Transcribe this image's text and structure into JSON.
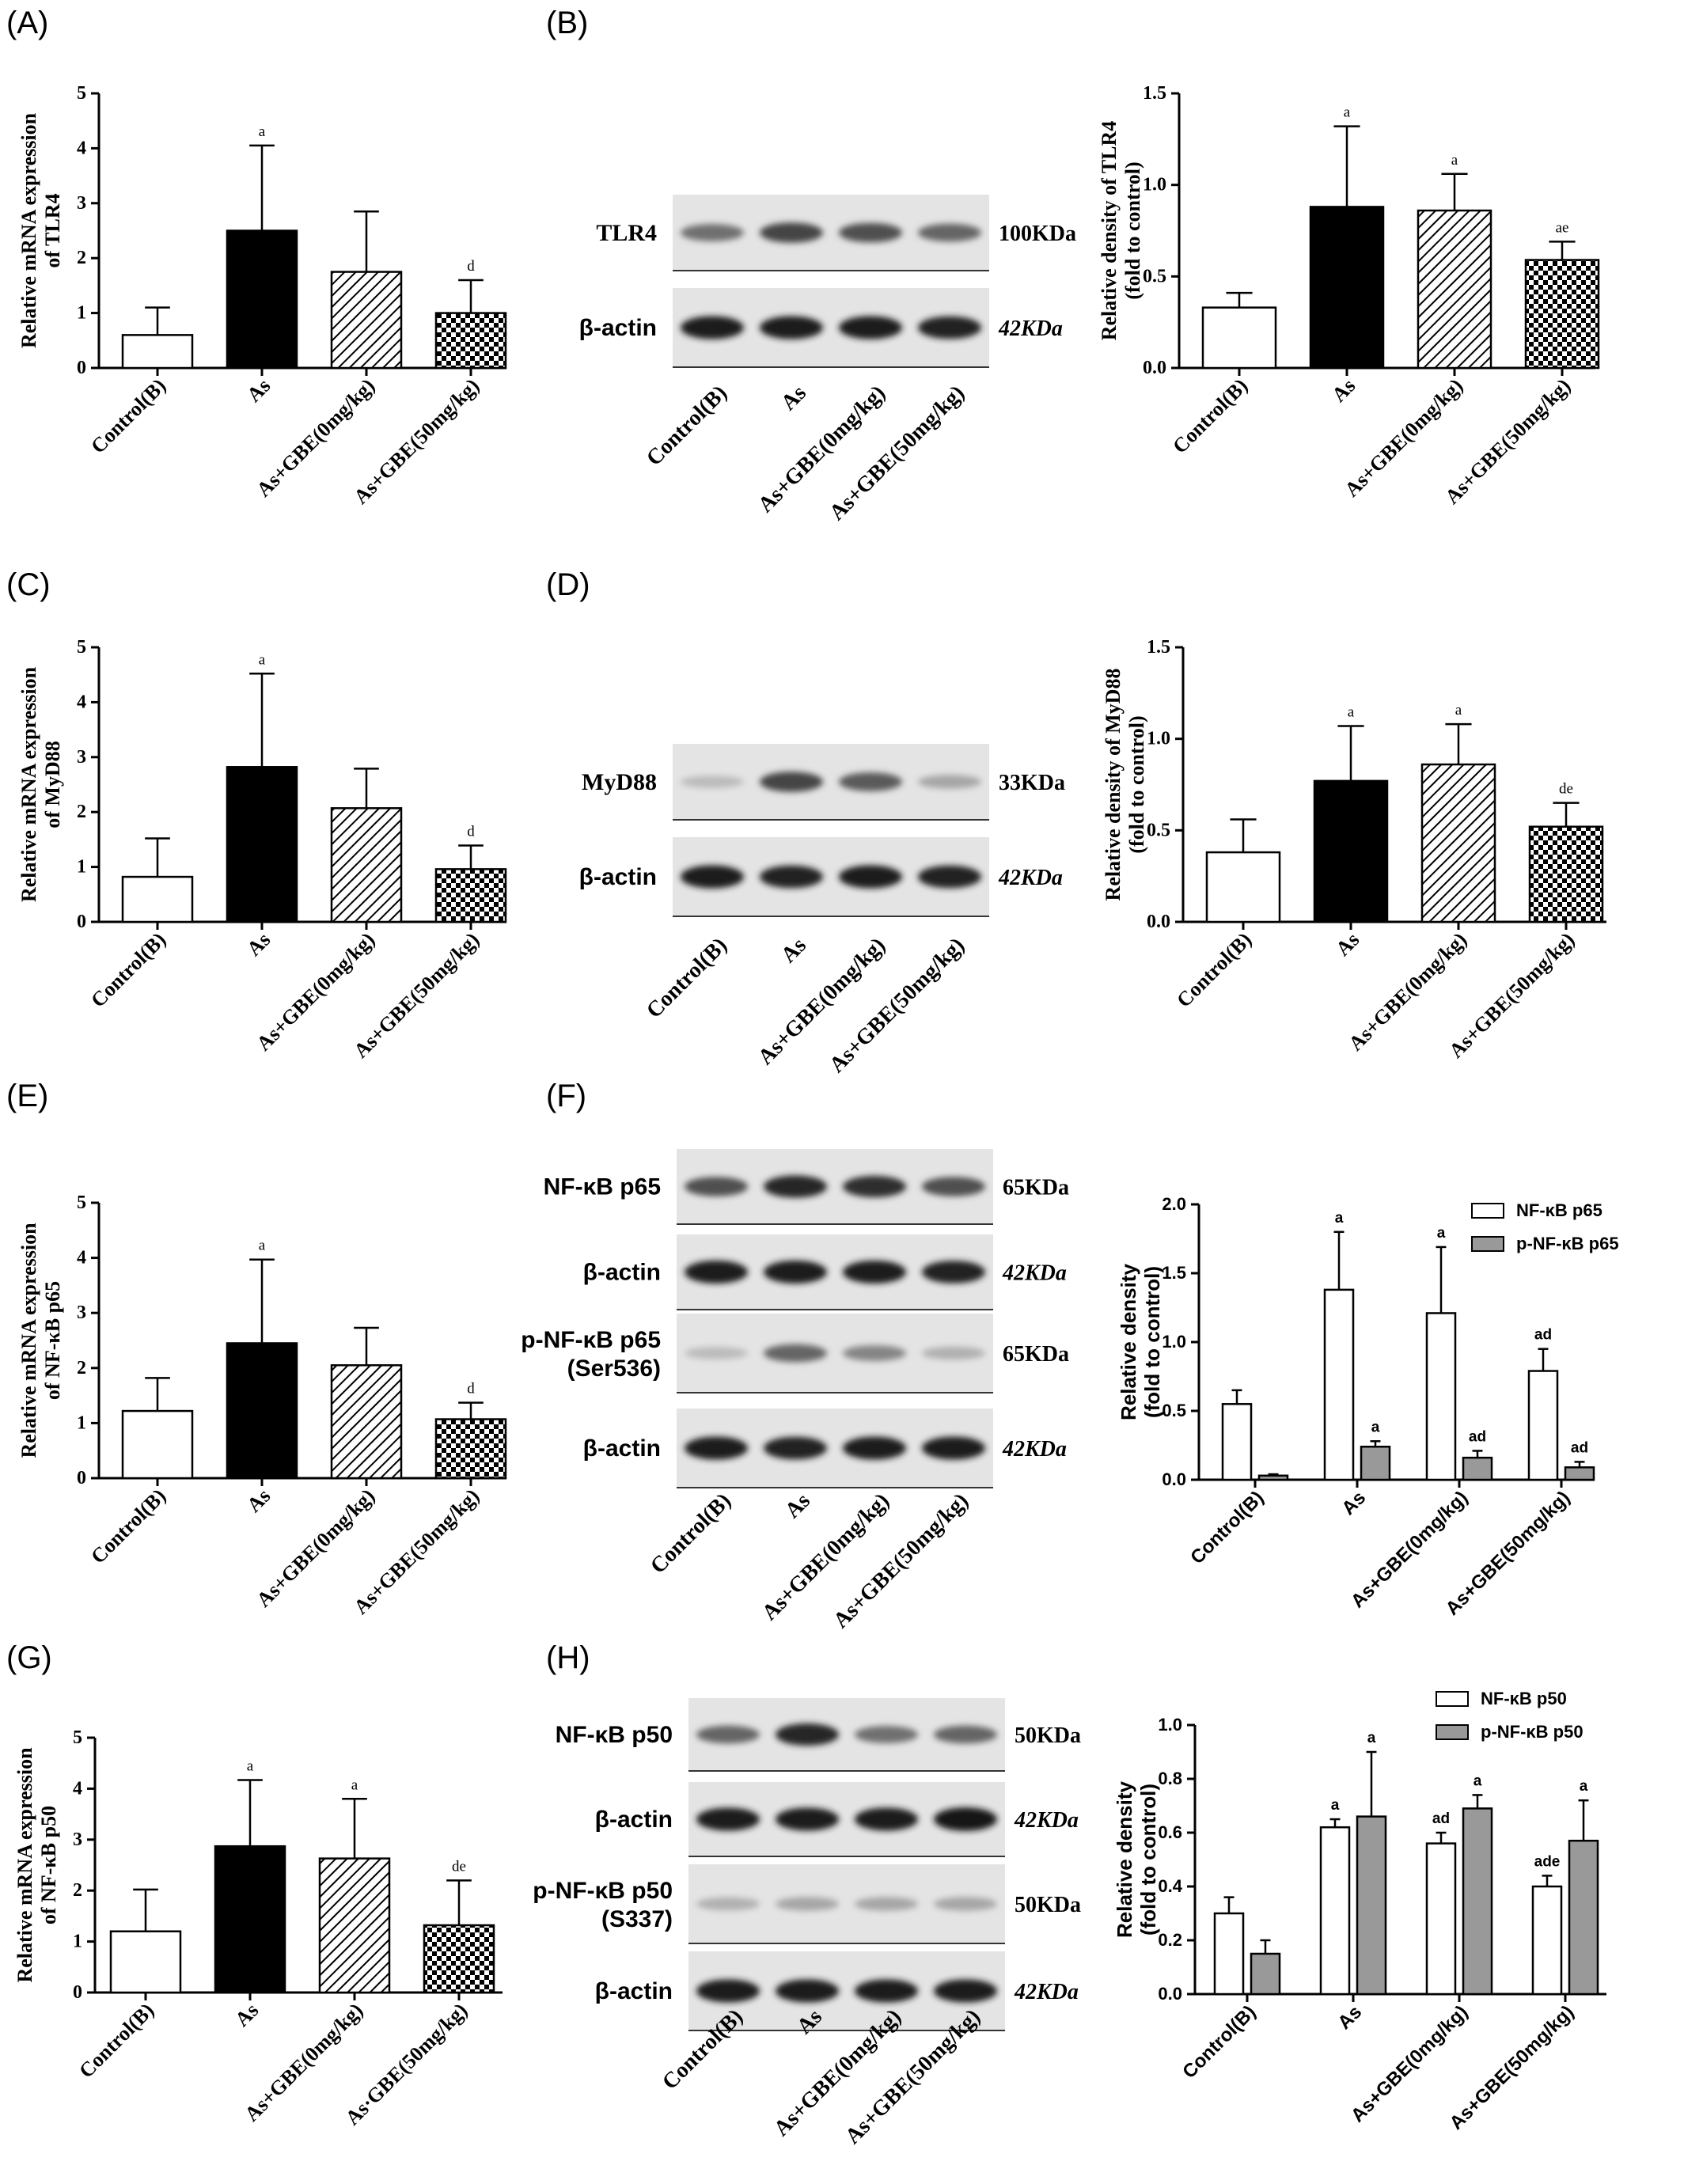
{
  "panel_labels": [
    "(A)",
    "(B)",
    "(C)",
    "(D)",
    "(E)",
    "(F)",
    "(G)",
    "(H)"
  ],
  "colors": {
    "black": "#000000",
    "white": "#ffffff",
    "gray": "#999999",
    "blot_bg": "#e4e4e4",
    "band": "#1e1e1e"
  },
  "chart_data": [
    {
      "id": "A",
      "type": "bar",
      "categories": [
        "Control(B)",
        "As",
        "As+GBE(0mg/kg)",
        "As+GBE(50mg/kg)"
      ],
      "values": [
        0.6,
        2.5,
        1.75,
        1.0
      ],
      "errors": [
        0.5,
        1.55,
        1.1,
        0.6
      ],
      "annotations": [
        "",
        "a",
        "",
        "d"
      ],
      "fills": [
        "white",
        "black",
        "hatch",
        "checker"
      ],
      "ylabel": [
        "Relative mRNA expression",
        "of TLR4"
      ],
      "ylim": [
        0,
        5
      ],
      "yticks": [
        "0",
        "1",
        "2",
        "3",
        "4",
        "5"
      ]
    },
    {
      "id": "B",
      "type": "bar",
      "categories": [
        "Control(B)",
        "As",
        "As+GBE(0mg/kg)",
        "As+GBE(50mg/kg)"
      ],
      "values": [
        0.33,
        0.88,
        0.86,
        0.59
      ],
      "errors": [
        0.08,
        0.44,
        0.2,
        0.1
      ],
      "annotations": [
        "",
        "a",
        "a",
        "ae"
      ],
      "fills": [
        "white",
        "black",
        "hatch",
        "checker"
      ],
      "ylabel": [
        "Relative density of TLR4",
        "(fold to control)"
      ],
      "ylim": [
        0,
        1.5
      ],
      "yticks": [
        "0.0",
        "0.5",
        "1.0",
        "1.5"
      ]
    },
    {
      "id": "C",
      "type": "bar",
      "categories": [
        "Control(B)",
        "As",
        "As+GBE(0mg/kg)",
        "As+GBE(50mg/kg)"
      ],
      "values": [
        0.82,
        2.82,
        2.07,
        0.96
      ],
      "errors": [
        0.7,
        1.7,
        0.72,
        0.43
      ],
      "annotations": [
        "",
        "a",
        "",
        "d"
      ],
      "fills": [
        "white",
        "black",
        "hatch",
        "checker"
      ],
      "ylabel": [
        "Relative mRNA expression",
        "of MyD88"
      ],
      "ylim": [
        0,
        5
      ],
      "yticks": [
        "0",
        "1",
        "2",
        "3",
        "4",
        "5"
      ]
    },
    {
      "id": "D",
      "type": "bar",
      "categories": [
        "Control(B)",
        "As",
        "As+GBE(0mg/kg)",
        "As+GBE(50mg/kg)"
      ],
      "values": [
        0.38,
        0.77,
        0.86,
        0.52
      ],
      "errors": [
        0.18,
        0.3,
        0.22,
        0.13
      ],
      "annotations": [
        "",
        "a",
        "a",
        "de"
      ],
      "fills": [
        "white",
        "black",
        "hatch",
        "checker"
      ],
      "ylabel": [
        "Relative density of MyD88",
        "(fold to control)"
      ],
      "ylim": [
        0,
        1.5
      ],
      "yticks": [
        "0.0",
        "0.5",
        "1.0",
        "1.5"
      ]
    },
    {
      "id": "E",
      "type": "bar",
      "categories": [
        "Control(B)",
        "As",
        "As+GBE(0mg/kg)",
        "As+GBE(50mg/kg)"
      ],
      "values": [
        1.22,
        2.45,
        2.05,
        1.07
      ],
      "errors": [
        0.6,
        1.52,
        0.68,
        0.3
      ],
      "annotations": [
        "",
        "a",
        "",
        "d"
      ],
      "fills": [
        "white",
        "black",
        "hatch",
        "checker"
      ],
      "ylabel": [
        "Relative mRNA expression",
        "of NF-κB p65"
      ],
      "ylim": [
        0,
        5
      ],
      "yticks": [
        "0",
        "1",
        "2",
        "3",
        "4",
        "5"
      ]
    },
    {
      "id": "F",
      "type": "bar",
      "categories": [
        "Control(B)",
        "As",
        "As+GBE(0mg/kg)",
        "As+GBE(50mg/kg)"
      ],
      "series": [
        {
          "name": "NF-κB p65",
          "values": [
            0.55,
            1.38,
            1.21,
            0.79
          ],
          "errors": [
            0.1,
            0.42,
            0.48,
            0.16
          ],
          "annotations": [
            "",
            "a",
            "a",
            "ad"
          ],
          "fill": "white"
        },
        {
          "name": "p-NF-κB p65",
          "values": [
            0.03,
            0.24,
            0.16,
            0.09
          ],
          "errors": [
            0.01,
            0.04,
            0.05,
            0.04
          ],
          "annotations": [
            "",
            "a",
            "ad",
            "ad"
          ],
          "fill": "gray"
        }
      ],
      "ylabel": [
        "Relative density",
        "(fold to control)"
      ],
      "ylim": [
        0,
        2.0
      ],
      "yticks": [
        "0.0",
        "0.5",
        "1.0",
        "1.5",
        "2.0"
      ],
      "legend": "top-right"
    },
    {
      "id": "G",
      "type": "bar",
      "categories": [
        "Control(B)",
        "As",
        "As+GBE(0mg/kg)",
        "As·GBE(50mg/kg)"
      ],
      "values": [
        1.2,
        2.87,
        2.63,
        1.32
      ],
      "errors": [
        0.82,
        1.3,
        1.17,
        0.88
      ],
      "annotations": [
        "",
        "a",
        "a",
        "de"
      ],
      "fills": [
        "white",
        "black",
        "hatch",
        "checker"
      ],
      "ylabel": [
        "Relative mRNA expression",
        "of NF-κB p50"
      ],
      "ylim": [
        0,
        5
      ],
      "yticks": [
        "0",
        "1",
        "2",
        "3",
        "4",
        "5"
      ]
    },
    {
      "id": "H",
      "type": "bar",
      "categories": [
        "Control(B)",
        "As",
        "As+GBE(0mg/kg)",
        "As+GBE(50mg/kg)"
      ],
      "series": [
        {
          "name": "NF-κB p50",
          "values": [
            0.3,
            0.62,
            0.56,
            0.4
          ],
          "errors": [
            0.06,
            0.03,
            0.04,
            0.04
          ],
          "annotations": [
            "",
            "a",
            "ad",
            "ade"
          ],
          "fill": "white"
        },
        {
          "name": "p-NF-κB p50",
          "values": [
            0.15,
            0.66,
            0.69,
            0.57
          ],
          "errors": [
            0.05,
            0.24,
            0.05,
            0.15
          ],
          "annotations": [
            "",
            "a",
            "a",
            "a"
          ],
          "fill": "gray"
        }
      ],
      "ylabel": [
        "Relative density",
        "(fold to control)"
      ],
      "ylim": [
        0,
        1.0
      ],
      "yticks": [
        "0.0",
        "0.2",
        "0.4",
        "0.6",
        "0.8",
        "1.0"
      ],
      "legend": "top-right"
    }
  ],
  "blots": [
    {
      "id": "B",
      "rows": [
        {
          "label": "TLR4",
          "mw": "100KDa",
          "intensity": [
            0.55,
            0.75,
            0.7,
            0.6
          ]
        },
        {
          "label": "β-actin",
          "mw": "42KDa",
          "intensity": [
            0.95,
            0.95,
            0.95,
            0.92
          ]
        }
      ],
      "lanes": [
        "Control(B)",
        "As",
        "As+GBE(0mg/kg)",
        "As+GBE(50mg/kg)"
      ]
    },
    {
      "id": "D",
      "rows": [
        {
          "label": "MyD88",
          "mw": "33KDa",
          "intensity": [
            0.2,
            0.75,
            0.65,
            0.3
          ]
        },
        {
          "label": "β-actin",
          "mw": "42KDa",
          "intensity": [
            0.95,
            0.92,
            0.95,
            0.92
          ]
        }
      ],
      "lanes": [
        "Control(B)",
        "As",
        "As+GBE(0mg/kg)",
        "As+GBE(50mg/kg)"
      ]
    },
    {
      "id": "F",
      "rows": [
        {
          "label": "NF-κB p65",
          "mw": "65KDa",
          "intensity": [
            0.7,
            0.9,
            0.85,
            0.7
          ]
        },
        {
          "label": "β-actin",
          "mw": "42KDa",
          "intensity": [
            0.95,
            0.95,
            0.95,
            0.92
          ]
        },
        {
          "label": [
            "p-NF-κB p65",
            "(Ser536)"
          ],
          "mw": "65KDa",
          "intensity": [
            0.2,
            0.6,
            0.45,
            0.25
          ]
        },
        {
          "label": "β-actin",
          "mw": "42KDa",
          "intensity": [
            0.95,
            0.92,
            0.95,
            0.95
          ]
        }
      ],
      "lanes": [
        "Control(B)",
        "As",
        "As+GBE(0mg/kg)",
        "As+GBE(50mg/kg)"
      ]
    },
    {
      "id": "H",
      "rows": [
        {
          "label": "NF-κB p50",
          "mw": "50KDa",
          "intensity": [
            0.6,
            0.9,
            0.55,
            0.6
          ]
        },
        {
          "label": "β-actin",
          "mw": "42KDa",
          "intensity": [
            0.95,
            0.95,
            0.95,
            0.98
          ]
        },
        {
          "label": [
            "p-NF-κB p50",
            "(S337)"
          ],
          "mw": "50KDa",
          "intensity": [
            0.25,
            0.3,
            0.3,
            0.3
          ]
        },
        {
          "label": "β-actin",
          "mw": "42KDa",
          "intensity": [
            0.95,
            0.95,
            0.95,
            0.95
          ]
        }
      ],
      "lanes": [
        "Control(B)",
        "As",
        "As+GBE(0mg/kg)",
        "As+GBE(50mg/kg)"
      ]
    }
  ]
}
